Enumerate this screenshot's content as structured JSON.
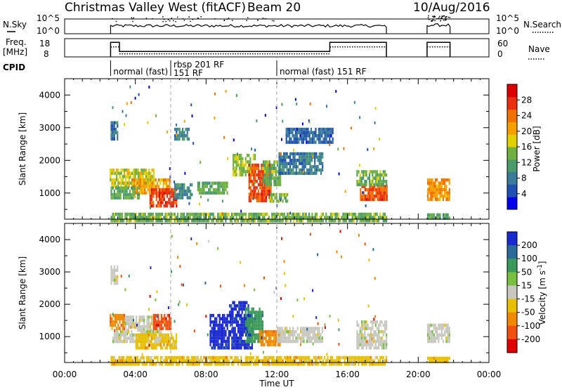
{
  "header": {
    "title": "Christmas Valley West (fitACF)",
    "beam": "Beam 20",
    "date": "10/Aug/2016"
  },
  "chart_data": [
    {
      "type": "line",
      "name": "sky-search-noise",
      "left_label_top": "N.Sky",
      "right_label": "N.Search",
      "yticks_left": [
        "10^5",
        "10^0"
      ],
      "yticks_right": [
        "10^5",
        "10^0"
      ],
      "segments": [
        {
          "x": [
            2.6,
            18.2
          ],
          "level": 0.25
        },
        {
          "x": [
            20.5,
            21.8
          ],
          "level": 0.3
        }
      ]
    },
    {
      "type": "line",
      "name": "freq-nave",
      "left_label_top": "Freq.",
      "left_label_bottom": "[MHz]",
      "yticks_left": [
        "18",
        "8"
      ],
      "yticks_right": [
        "60",
        "0"
      ],
      "right_label": "Nave",
      "freq_segments": [
        {
          "x": [
            2.6,
            3.1
          ],
          "mhz": 16
        },
        {
          "x": [
            3.1,
            15.0
          ],
          "mhz": 11
        },
        {
          "x": [
            15.0,
            18.2
          ],
          "mhz": 16
        },
        {
          "x": [
            20.5,
            21.8
          ],
          "mhz": 16
        }
      ],
      "nave_segments": [
        {
          "x": [
            2.6,
            3.1
          ],
          "n": 33
        },
        {
          "x": [
            3.1,
            15.0
          ],
          "n": 10
        },
        {
          "x": [
            15.0,
            18.2
          ],
          "n": 33
        },
        {
          "x": [
            20.5,
            21.8
          ],
          "n": 33
        }
      ]
    },
    {
      "type": "table",
      "name": "cpid",
      "label": "CPID",
      "entries": [
        {
          "t": 2.6,
          "text": "normal (fast)"
        },
        {
          "t": 6.0,
          "text": "rbsp 201 RF",
          "line2": "151 RF"
        },
        {
          "t": 12.0,
          "text": "normal (fast) 151 RF"
        }
      ]
    },
    {
      "type": "heatmap",
      "name": "power",
      "ylabel": "Slant Range [km]",
      "ylim": [
        200,
        4500
      ],
      "yticks": [
        1000,
        2000,
        3000,
        4000
      ],
      "colorbar": {
        "label": "Power [dB]",
        "ticks": [
          "4",
          "8",
          "12",
          "16",
          "20",
          "24",
          "28"
        ],
        "range": [
          0,
          32
        ],
        "colors": [
          "#0000ee",
          "#2050b0",
          "#3a7a9a",
          "#4a9a6a",
          "#70b040",
          "#e0d000",
          "#f5a000",
          "#f07000",
          "#e83010",
          "#dd0000"
        ]
      },
      "regions": [
        {
          "t0": 2.55,
          "t1": 5.0,
          "r0": 1250,
          "r1": 1750,
          "v": 17
        },
        {
          "t0": 3.8,
          "t1": 5.9,
          "r0": 1050,
          "r1": 1450,
          "v": 21
        },
        {
          "t0": 4.8,
          "t1": 6.3,
          "r0": 650,
          "r1": 1150,
          "v": 27
        },
        {
          "t0": 2.6,
          "t1": 4.2,
          "r0": 850,
          "r1": 1200,
          "v": 13
        },
        {
          "t0": 6.2,
          "t1": 7.2,
          "r0": 850,
          "r1": 1300,
          "v": 10
        },
        {
          "t0": 7.5,
          "t1": 9.2,
          "r0": 1000,
          "r1": 1350,
          "v": 13
        },
        {
          "t0": 9.5,
          "t1": 10.8,
          "r0": 1600,
          "r1": 2200,
          "v": 16
        },
        {
          "t0": 10.4,
          "t1": 11.7,
          "r0": 800,
          "r1": 1900,
          "v": 26
        },
        {
          "t0": 11.2,
          "t1": 12.2,
          "r0": 1300,
          "r1": 2000,
          "v": 14
        },
        {
          "t0": 11.6,
          "t1": 12.6,
          "r0": 750,
          "r1": 1000,
          "v": 14
        },
        {
          "t0": 12.1,
          "t1": 14.6,
          "r0": 1650,
          "r1": 2250,
          "v": 8
        },
        {
          "t0": 12.5,
          "t1": 15.2,
          "r0": 2600,
          "r1": 3000,
          "v": 6
        },
        {
          "t0": 16.7,
          "t1": 18.2,
          "r0": 800,
          "r1": 1250,
          "v": 26
        },
        {
          "t0": 16.5,
          "t1": 18.2,
          "r0": 1300,
          "r1": 1700,
          "v": 14
        },
        {
          "t0": 20.5,
          "t1": 21.8,
          "r0": 850,
          "r1": 1450,
          "v": 22
        },
        {
          "t0": 2.6,
          "t1": 3.0,
          "r0": 2700,
          "r1": 3200,
          "v": 7
        },
        {
          "t0": 6.2,
          "t1": 7.0,
          "r0": 2700,
          "r1": 3000,
          "v": 9
        },
        {
          "t0": 2.6,
          "t1": 18.2,
          "r0": 200,
          "r1": 400,
          "v": 14
        },
        {
          "t0": 20.5,
          "t1": 21.8,
          "r0": 200,
          "r1": 380,
          "v": 12
        }
      ]
    },
    {
      "type": "heatmap",
      "name": "velocity",
      "ylabel": "Slant Range [km]",
      "ylim": [
        200,
        4500
      ],
      "yticks": [
        1000,
        2000,
        3000,
        4000
      ],
      "xlabel": "Time UT",
      "xticks": [
        "00:00",
        "04:00",
        "08:00",
        "12:00",
        "16:00",
        "20:00",
        "00:00"
      ],
      "xlim": [
        0,
        24
      ],
      "colorbar": {
        "label": "Velocity [m s^-1]",
        "ticks": [
          "200",
          "100",
          "50",
          "15",
          "-15",
          "-50",
          "-100",
          "-200"
        ],
        "colors": [
          "#1a2ad0",
          "#2a6a9a",
          "#3a9a5a",
          "#7ac040",
          "#c8c8c0",
          "#e8c000",
          "#f08800",
          "#f05010",
          "#e00000"
        ]
      },
      "regions": [
        {
          "t0": 2.55,
          "t1": 3.4,
          "r0": 1300,
          "r1": 1700,
          "v": 6
        },
        {
          "t0": 3.4,
          "t1": 5.2,
          "r0": 1250,
          "r1": 1650,
          "v": 4
        },
        {
          "t0": 5.0,
          "t1": 6.0,
          "r0": 1250,
          "r1": 1700,
          "v": 7
        },
        {
          "t0": 2.7,
          "t1": 5.6,
          "r0": 850,
          "r1": 1200,
          "v": 4
        },
        {
          "t0": 4.0,
          "t1": 6.3,
          "r0": 650,
          "r1": 1100,
          "v": 5
        },
        {
          "t0": 8.2,
          "t1": 10.6,
          "r0": 650,
          "r1": 1700,
          "v": 0
        },
        {
          "t0": 9.3,
          "t1": 10.4,
          "r0": 1700,
          "r1": 2100,
          "v": 0
        },
        {
          "t0": 10.2,
          "t1": 11.2,
          "r0": 900,
          "r1": 1900,
          "v": 2
        },
        {
          "t0": 11.0,
          "t1": 12.2,
          "r0": 800,
          "r1": 1200,
          "v": 6
        },
        {
          "t0": 12.0,
          "t1": 14.6,
          "r0": 900,
          "r1": 1300,
          "v": 4
        },
        {
          "t0": 16.5,
          "t1": 18.2,
          "r0": 650,
          "r1": 1500,
          "v": 4
        },
        {
          "t0": 20.5,
          "t1": 21.8,
          "r0": 850,
          "r1": 1400,
          "v": 4
        },
        {
          "t0": 2.6,
          "t1": 3.0,
          "r0": 2700,
          "r1": 3200,
          "v": 4
        },
        {
          "t0": 2.6,
          "t1": 18.2,
          "r0": 200,
          "r1": 400,
          "v": 5
        },
        {
          "t0": 20.5,
          "t1": 21.8,
          "r0": 200,
          "r1": 380,
          "v": 5
        }
      ]
    }
  ]
}
